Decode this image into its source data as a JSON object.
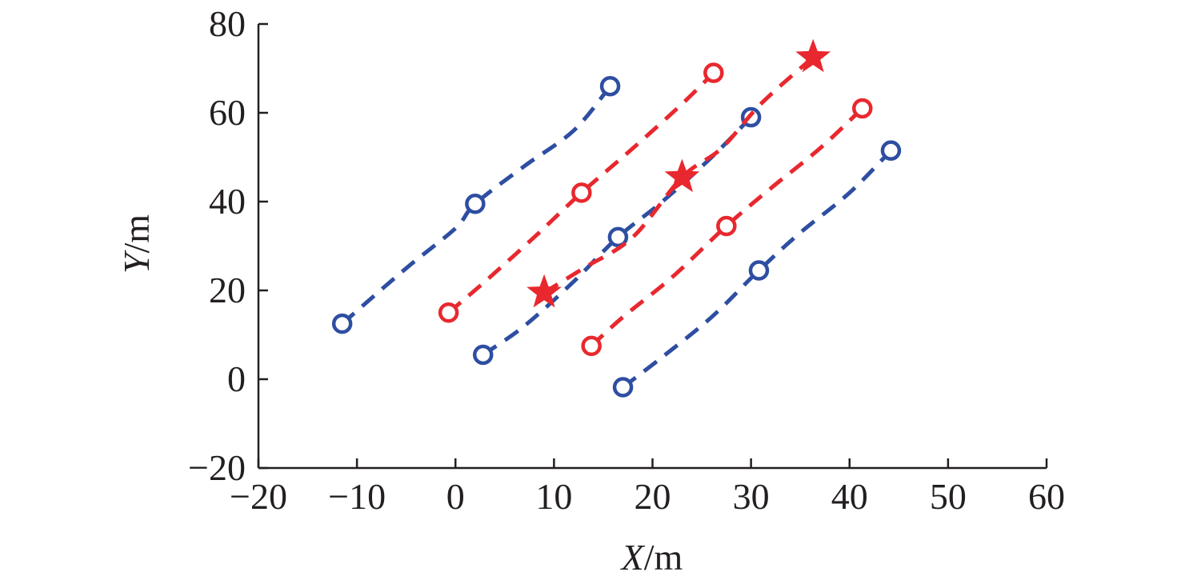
{
  "chart_data": {
    "type": "line",
    "xlabel_var": "X",
    "xlabel_unit": "/m",
    "ylabel_var": "Y",
    "ylabel_unit": "/m",
    "xlim": [
      -20,
      60
    ],
    "ylim": [
      -20,
      80
    ],
    "xticks": [
      -20,
      -10,
      0,
      10,
      20,
      30,
      40,
      50,
      60
    ],
    "yticks": [
      -20,
      0,
      20,
      40,
      60,
      80
    ],
    "xtick_labels": [
      "−20",
      "−10",
      "0",
      "10",
      "20",
      "30",
      "40",
      "50",
      "60"
    ],
    "ytick_labels": [
      "−20",
      "0",
      "20",
      "40",
      "60",
      "80"
    ],
    "grid": false,
    "colors": {
      "blue": "#2e4ea1",
      "red": "#e8282e",
      "axis": "#231f20"
    },
    "series": [
      {
        "color": "blue",
        "points": [
          [
            -11.5,
            12.5
          ],
          [
            -5,
            25
          ],
          [
            0,
            34
          ],
          [
            2.0,
            39.5
          ],
          [
            7,
            48
          ],
          [
            12,
            56
          ],
          [
            15.7,
            66.0
          ]
        ],
        "circles": [
          [
            -11.5,
            12.5
          ],
          [
            2.0,
            39.5
          ],
          [
            15.7,
            66.0
          ]
        ]
      },
      {
        "color": "red",
        "points": [
          [
            -0.7,
            15.0
          ],
          [
            3,
            22
          ],
          [
            8,
            32
          ],
          [
            12.8,
            42.0
          ],
          [
            18,
            52
          ],
          [
            23,
            62
          ],
          [
            26.2,
            69.0
          ]
        ],
        "circles": [
          [
            -0.7,
            15.0
          ],
          [
            12.8,
            42.0
          ],
          [
            26.2,
            69.0
          ]
        ]
      },
      {
        "color": "blue",
        "points": [
          [
            2.8,
            5.5
          ],
          [
            7,
            12
          ],
          [
            12,
            22
          ],
          [
            16.5,
            32.0
          ],
          [
            21,
            40
          ],
          [
            26,
            50
          ],
          [
            30.0,
            59.0
          ]
        ],
        "circles": [
          [
            2.8,
            5.5
          ],
          [
            16.5,
            32.0
          ],
          [
            30.0,
            59.0
          ]
        ]
      },
      {
        "color": "red",
        "points": [
          [
            9.0,
            19.5
          ],
          [
            13,
            25
          ],
          [
            18,
            32
          ],
          [
            23.0,
            45.5
          ],
          [
            27,
            52
          ],
          [
            31,
            62
          ],
          [
            36.3,
            72.5
          ]
        ],
        "circles": []
      },
      {
        "color": "red",
        "points": [
          [
            13.8,
            7.5
          ],
          [
            17,
            14
          ],
          [
            22,
            23
          ],
          [
            27.5,
            34.5
          ],
          [
            32,
            43
          ],
          [
            37,
            52
          ],
          [
            41.3,
            61.0
          ]
        ],
        "circles": [
          [
            13.8,
            7.5
          ],
          [
            27.5,
            34.5
          ],
          [
            41.3,
            61.0
          ]
        ]
      },
      {
        "color": "blue",
        "points": [
          [
            17.0,
            -1.8
          ],
          [
            21,
            5
          ],
          [
            26,
            14
          ],
          [
            30.8,
            24.5
          ],
          [
            35,
            33
          ],
          [
            40,
            42
          ],
          [
            44.2,
            51.5
          ]
        ],
        "circles": [
          [
            17.0,
            -1.8
          ],
          [
            30.8,
            24.5
          ],
          [
            44.2,
            51.5
          ]
        ]
      }
    ],
    "stars": [
      {
        "color": "red",
        "point": [
          9.0,
          19.5
        ]
      },
      {
        "color": "red",
        "point": [
          23.0,
          45.5
        ]
      },
      {
        "color": "red",
        "point": [
          36.3,
          72.5
        ]
      }
    ]
  }
}
